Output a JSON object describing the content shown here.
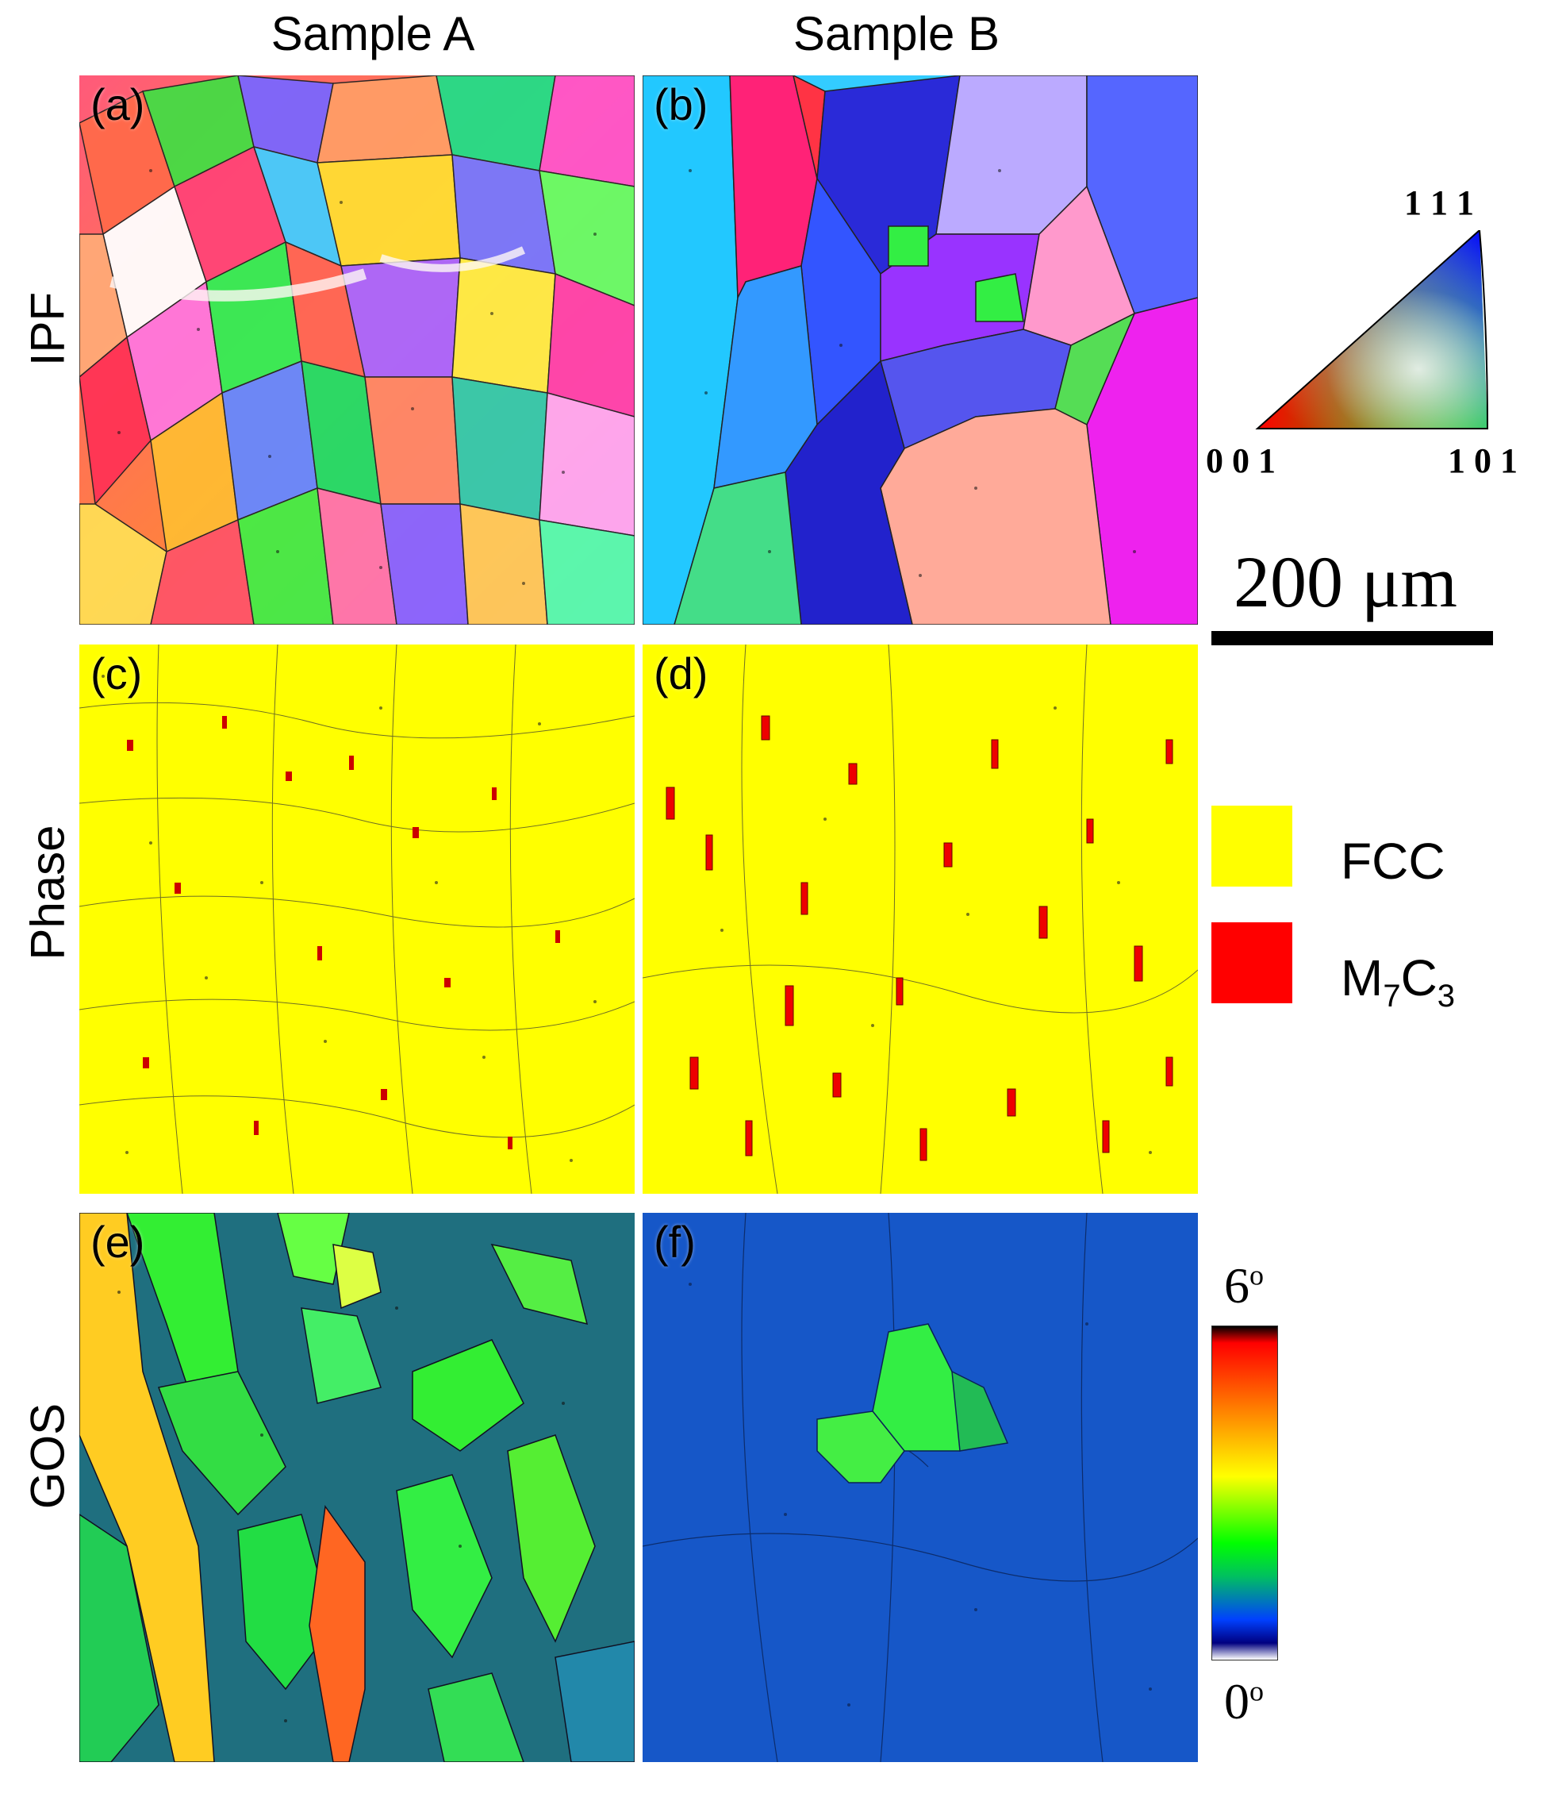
{
  "columns": {
    "a": "Sample A",
    "b": "Sample B"
  },
  "rows": {
    "ipf": "IPF",
    "phase": "Phase",
    "gos": "GOS"
  },
  "panels": {
    "a": "(a)",
    "b": "(b)",
    "c": "(c)",
    "d": "(d)",
    "e": "(e)",
    "f": "(f)"
  },
  "ipf_key": {
    "top": "1 1 1",
    "left": "0 0 1",
    "right": "1 0 1"
  },
  "scale_bar": {
    "label": "200 μm"
  },
  "phase_legend": [
    {
      "label": "FCC",
      "color": "#ffff00"
    },
    {
      "label": "M7C3",
      "base": "M",
      "sub1": "7",
      "mid": "C",
      "sub2": "3",
      "color": "#ff0000"
    }
  ],
  "gos_colorbar": {
    "max": "6",
    "min": "0",
    "unit": "o",
    "colors": [
      "#ff0000",
      "#ff8000",
      "#ffff00",
      "#00ff00",
      "#00c060",
      "#0040ff",
      "#000080"
    ]
  }
}
